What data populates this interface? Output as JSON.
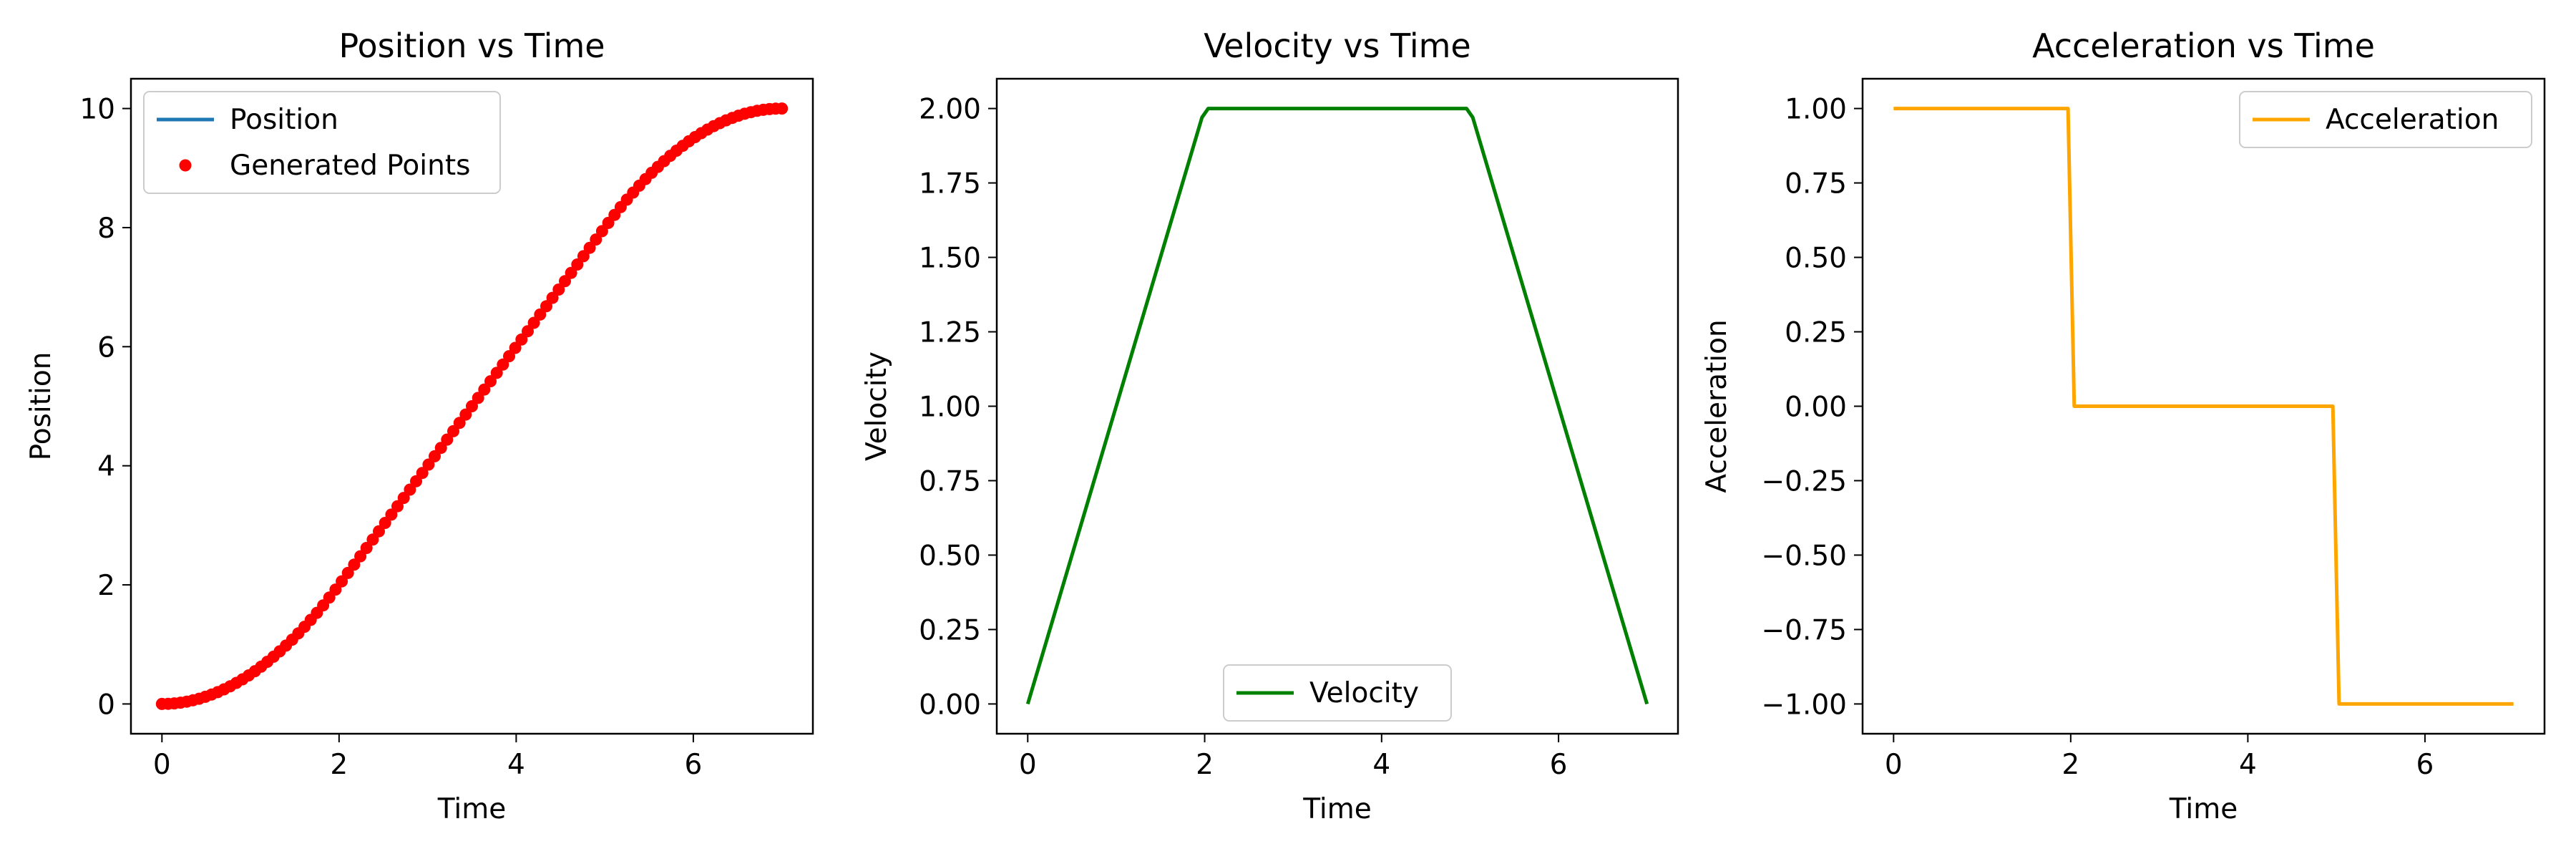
{
  "figure": {
    "background": "#ffffff"
  },
  "chart_data": [
    {
      "type": "line",
      "title": "Position vs Time",
      "xlabel": "Time",
      "ylabel": "Position",
      "xlim": [
        -0.35,
        7.35
      ],
      "ylim": [
        -0.5,
        10.5
      ],
      "xticks": [
        0,
        2,
        4,
        6
      ],
      "yticks": [
        0,
        2,
        4,
        6,
        8,
        10
      ],
      "xtick_labels": [
        "0",
        "2",
        "4",
        "6"
      ],
      "ytick_labels": [
        "0",
        "2",
        "4",
        "6",
        "8",
        "10"
      ],
      "grid": false,
      "legend": {
        "placement": "top-left",
        "entries": [
          "Position",
          "Generated Points"
        ]
      },
      "series": [
        {
          "name": "Position",
          "kind": "line",
          "color": "#1f77b4",
          "x": [
            0,
            0.25,
            0.5,
            0.75,
            1,
            1.25,
            1.5,
            1.75,
            2,
            2.25,
            2.5,
            2.75,
            3,
            3.25,
            3.5,
            3.75,
            4,
            4.25,
            4.5,
            4.75,
            5,
            5.25,
            5.5,
            5.75,
            6,
            6.25,
            6.5,
            6.75,
            7
          ],
          "y": [
            0,
            0.03,
            0.13,
            0.28,
            0.5,
            0.78,
            1.13,
            1.53,
            2.0,
            2.5,
            3.0,
            3.5,
            4.0,
            4.5,
            5.0,
            5.5,
            6.0,
            6.5,
            7.0,
            7.5,
            8.0,
            8.47,
            8.88,
            9.22,
            9.5,
            9.72,
            9.88,
            9.97,
            10.0
          ]
        },
        {
          "name": "Generated Points",
          "kind": "scatter",
          "color": "#ff0000",
          "x": [
            0,
            0.07,
            0.14,
            0.21,
            0.28,
            0.35,
            0.42,
            0.49,
            0.56,
            0.63,
            0.7,
            0.77,
            0.84,
            0.91,
            0.98,
            1.05,
            1.12,
            1.19,
            1.26,
            1.33,
            1.4,
            1.47,
            1.54,
            1.61,
            1.68,
            1.75,
            1.82,
            1.89,
            1.96,
            2.03,
            2.1,
            2.17,
            2.24,
            2.31,
            2.38,
            2.45,
            2.52,
            2.59,
            2.66,
            2.73,
            2.8,
            2.87,
            2.94,
            3.01,
            3.08,
            3.15,
            3.22,
            3.29,
            3.36,
            3.43,
            3.5,
            3.57,
            3.64,
            3.71,
            3.78,
            3.85,
            3.92,
            3.99,
            4.06,
            4.13,
            4.2,
            4.27,
            4.34,
            4.41,
            4.48,
            4.55,
            4.62,
            4.69,
            4.76,
            4.83,
            4.9,
            4.97,
            5.04,
            5.11,
            5.18,
            5.25,
            5.32,
            5.39,
            5.46,
            5.53,
            5.6,
            5.67,
            5.74,
            5.81,
            5.88,
            5.95,
            6.02,
            6.09,
            6.16,
            6.23,
            6.3,
            6.37,
            6.44,
            6.51,
            6.58,
            6.65,
            6.72,
            6.79,
            6.86,
            6.93,
            7.0
          ],
          "y": [
            0,
            0.002,
            0.01,
            0.022,
            0.039,
            0.061,
            0.088,
            0.12,
            0.157,
            0.198,
            0.245,
            0.296,
            0.353,
            0.414,
            0.48,
            0.551,
            0.627,
            0.708,
            0.794,
            0.884,
            0.98,
            1.08,
            1.186,
            1.296,
            1.411,
            1.531,
            1.656,
            1.786,
            1.921,
            2.06,
            2.2,
            2.34,
            2.48,
            2.62,
            2.76,
            2.9,
            3.04,
            3.18,
            3.32,
            3.46,
            3.6,
            3.74,
            3.88,
            4.02,
            4.16,
            4.3,
            4.44,
            4.58,
            4.72,
            4.86,
            5.0,
            5.14,
            5.28,
            5.42,
            5.56,
            5.7,
            5.84,
            5.98,
            6.12,
            6.26,
            6.4,
            6.54,
            6.68,
            6.82,
            6.96,
            7.1,
            7.24,
            7.38,
            7.52,
            7.66,
            7.8,
            7.94,
            8.079,
            8.214,
            8.344,
            8.469,
            8.589,
            8.704,
            8.814,
            8.92,
            9.02,
            9.116,
            9.206,
            9.292,
            9.373,
            9.449,
            9.52,
            9.586,
            9.647,
            9.704,
            9.755,
            9.802,
            9.843,
            9.88,
            9.912,
            9.939,
            9.961,
            9.978,
            9.99,
            9.998,
            10.0
          ]
        }
      ]
    },
    {
      "type": "line",
      "title": "Velocity vs Time",
      "xlabel": "Time",
      "ylabel": "Velocity",
      "xlim": [
        -0.35,
        7.35
      ],
      "ylim": [
        -0.1,
        2.1
      ],
      "xticks": [
        0,
        2,
        4,
        6
      ],
      "yticks": [
        0,
        0.25,
        0.5,
        0.75,
        1,
        1.25,
        1.5,
        1.75,
        2
      ],
      "xtick_labels": [
        "0",
        "2",
        "4",
        "6"
      ],
      "ytick_labels": [
        "0.00",
        "0.25",
        "0.50",
        "0.75",
        "1.00",
        "1.25",
        "1.50",
        "1.75",
        "2.00"
      ],
      "grid": false,
      "legend": {
        "placement": "bottom-center",
        "entries": [
          "Velocity"
        ]
      },
      "series": [
        {
          "name": "Velocity",
          "kind": "line",
          "color": "#008000",
          "x": [
            0,
            1.97,
            2.04,
            4.96,
            5.03,
            7.0
          ],
          "y": [
            0,
            1.97,
            2.0,
            2.0,
            1.97,
            0
          ]
        }
      ]
    },
    {
      "type": "line",
      "title": "Acceleration vs Time",
      "xlabel": "Time",
      "ylabel": "Acceleration",
      "xlim": [
        -0.35,
        7.35
      ],
      "ylim": [
        -1.1,
        1.1
      ],
      "xticks": [
        0,
        2,
        4,
        6
      ],
      "yticks": [
        -1,
        -0.75,
        -0.5,
        -0.25,
        0,
        0.25,
        0.5,
        0.75,
        1
      ],
      "xtick_labels": [
        "0",
        "2",
        "4",
        "6"
      ],
      "ytick_labels": [
        "−1.00",
        "−0.75",
        "−0.50",
        "−0.25",
        "0.00",
        "0.25",
        "0.50",
        "0.75",
        "1.00"
      ],
      "grid": false,
      "legend": {
        "placement": "top-right",
        "entries": [
          "Acceleration"
        ]
      },
      "series": [
        {
          "name": "Acceleration",
          "kind": "line",
          "color": "#ffa500",
          "x": [
            0,
            1.97,
            2.04,
            4.96,
            5.03,
            7.0
          ],
          "y": [
            1,
            1,
            0,
            0,
            -1,
            -1
          ]
        }
      ]
    }
  ]
}
